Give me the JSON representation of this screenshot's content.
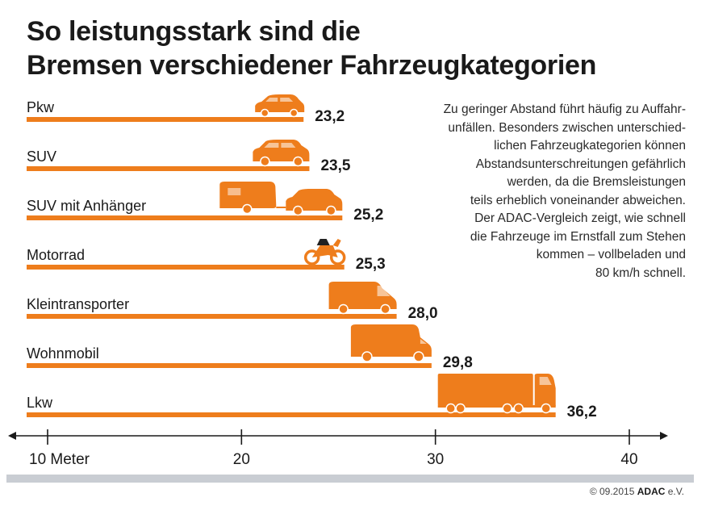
{
  "title_line1": "So leistungsstark sind die",
  "title_line2": "Bremsen verschiedener Fahrzeugkategorien",
  "note_lines": [
    "Zu geringer Abstand führt häufig zu Auffahr-",
    "unfällen. Besonders zwischen unterschied-",
    "lichen Fahrzeugkategorien können",
    "Abstandsunterschreitungen gefährlich",
    "werden, da die Bremsleistungen",
    "teils erheblich voneinander abweichen.",
    "Der ADAC-Vergleich zeigt, wie schnell",
    "die Fahrzeuge im Ernstfall zum Stehen",
    "kommen – vollbeladen und",
    "80 km/h schnell."
  ],
  "copyright_prefix": "© 09.2015",
  "copyright_brand": "ADAC",
  "copyright_suffix": "e.V.",
  "colors": {
    "bar": "#ee7d1c",
    "axis": "#1a1a1a",
    "band": "#c9cdd3"
  },
  "chart_data": {
    "type": "bar",
    "orientation": "horizontal",
    "categories": [
      "Pkw",
      "SUV",
      "SUV mit Anhänger",
      "Motorrad",
      "Kleintransporter",
      "Wohnmobil",
      "Lkw"
    ],
    "values": [
      23.2,
      23.5,
      25.2,
      25.3,
      28.0,
      29.8,
      36.2
    ],
    "value_labels": [
      "23,2",
      "23,5",
      "25,2",
      "25,3",
      "28,0",
      "29,8",
      "36,2"
    ],
    "icons": [
      "car-icon",
      "suv-icon",
      "suv-trailer-icon",
      "motorcycle-icon",
      "van-icon",
      "motorhome-icon",
      "truck-icon"
    ],
    "x_ticks": [
      10,
      20,
      30,
      40
    ],
    "x_tick_labels": [
      "10 Meter",
      "20",
      "30",
      "40"
    ],
    "xlim": [
      10,
      40
    ],
    "grid": false
  }
}
